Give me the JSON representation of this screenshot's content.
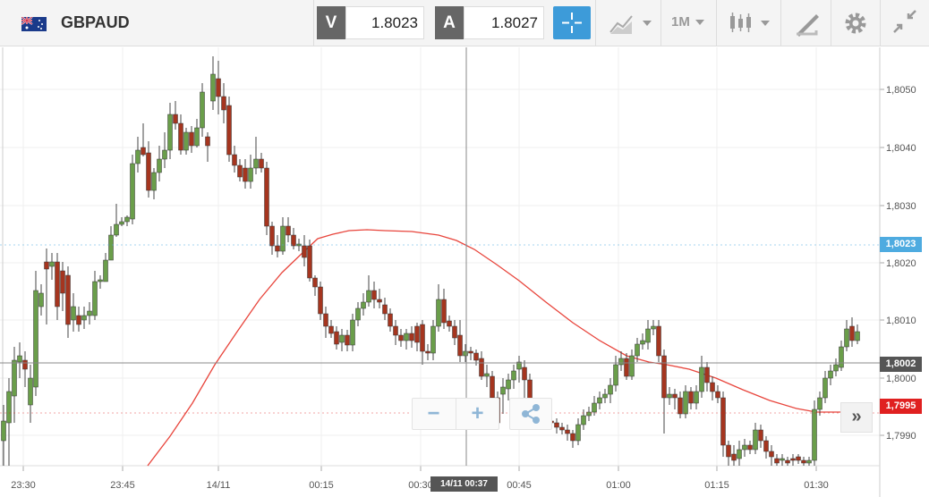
{
  "header": {
    "symbol": "GBPAUD",
    "flag_icon": "gb-au-flag-icon",
    "sell_label": "V",
    "sell_price": "1.8023",
    "buy_label": "A",
    "buy_price": "1.8027",
    "timeframe": "1M"
  },
  "chart": {
    "y_ticks": [
      "1,8050",
      "1,8040",
      "1,8030",
      "1,8020",
      "1,8010",
      "1,8000",
      "1,7990"
    ],
    "x_ticks": [
      "23:30",
      "23:45",
      "14/11",
      "00:15",
      "00:30",
      "00:45",
      "01:00",
      "01:15",
      "01:30"
    ],
    "price_badges": {
      "sell": "1,8023",
      "crosshair": "1,8002",
      "low": "1,7995"
    },
    "crosshair_time": "14/11 00:37",
    "colors": {
      "up": "#6a9e4a",
      "down": "#a5351f",
      "ma": "#e8453c",
      "sell_badge": "#4eabe0",
      "crosshair_badge": "#555555",
      "low_badge": "#e02020"
    }
  },
  "controls": {
    "zoom_out": "−",
    "zoom_in": "+",
    "share_icon": "share-icon",
    "scroll_end": "»"
  }
}
